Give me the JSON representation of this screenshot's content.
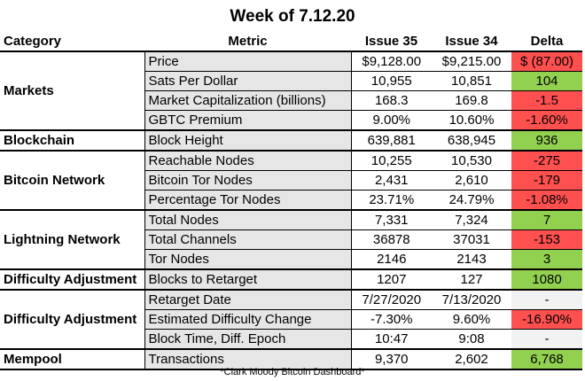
{
  "title": "Week of 7.12.20",
  "headers": {
    "category": "Category",
    "metric": "Metric",
    "issue35": "Issue 35",
    "issue34": "Issue 34",
    "delta": "Delta"
  },
  "groups": [
    {
      "category": "Markets",
      "rows": [
        {
          "metric": "Price",
          "issue35": "$9,128.00",
          "issue34": "$9,215.00",
          "delta": "$  (87.00)",
          "status": "red"
        },
        {
          "metric": "Sats Per Dollar",
          "issue35": "10,955",
          "issue34": "10,851",
          "delta": "104",
          "status": "green"
        },
        {
          "metric": "Market Capitalization (billions)",
          "issue35": "168.3",
          "issue34": "169.8",
          "delta": "-1.5",
          "status": "red"
        },
        {
          "metric": "GBTC Premium",
          "issue35": "9.00%",
          "issue34": "10.60%",
          "delta": "-1.60%",
          "status": "red"
        }
      ]
    },
    {
      "category": "Blockchain",
      "rows": [
        {
          "metric": "Block Height",
          "issue35": "639,881",
          "issue34": "638,945",
          "delta": "936",
          "status": "green"
        }
      ]
    },
    {
      "category": "Bitcoin Network",
      "rows": [
        {
          "metric": "Reachable Nodes",
          "issue35": "10,255",
          "issue34": "10,530",
          "delta": "-275",
          "status": "red"
        },
        {
          "metric": "Bitcoin Tor Nodes",
          "issue35": "2,431",
          "issue34": "2,610",
          "delta": "-179",
          "status": "red"
        },
        {
          "metric": "Percentage Tor Nodes",
          "issue35": "23.71%",
          "issue34": "24.79%",
          "delta": "-1.08%",
          "status": "red"
        }
      ]
    },
    {
      "category": "Lightning Network",
      "rows": [
        {
          "metric": "Total Nodes",
          "issue35": "7,331",
          "issue34": "7,324",
          "delta": "7",
          "status": "green"
        },
        {
          "metric": "Total Channels",
          "issue35": "36878",
          "issue34": "37031",
          "delta": "-153",
          "status": "red"
        },
        {
          "metric": "Tor Nodes",
          "issue35": "2146",
          "issue34": "2143",
          "delta": "3",
          "status": "green"
        }
      ]
    },
    {
      "category": "Difficulty Adjustment",
      "rows": [
        {
          "metric": "Blocks to Retarget",
          "issue35": "1207",
          "issue34": "127",
          "delta": "1080",
          "status": "green"
        }
      ]
    },
    {
      "category": "Difficulty Adjustment",
      "rows": [
        {
          "metric": "Retarget Date",
          "issue35": "7/27/2020",
          "issue34": "7/13/2020",
          "delta": "-",
          "status": "neutral"
        },
        {
          "metric": "Estimated Difficulty Change",
          "issue35": "-7.30%",
          "issue34": "9.60%",
          "delta": "-16.90%",
          "status": "red"
        },
        {
          "metric": "Block Time, Diff. Epoch",
          "issue35": "10:47",
          "issue34": "9:08",
          "delta": "-",
          "status": "neutral"
        }
      ]
    },
    {
      "category": "Mempool",
      "rows": [
        {
          "metric": "Transactions",
          "issue35": "9,370",
          "issue34": "2,602",
          "delta": "6,768",
          "status": "green"
        }
      ]
    }
  ],
  "footer": "*Clark Moody Bitcoin Dashboard*",
  "colors": {
    "green": "#92d050",
    "red": "#ff5050",
    "neutral": "#f2f2f2",
    "metric_bg": "#e7e6e6"
  }
}
